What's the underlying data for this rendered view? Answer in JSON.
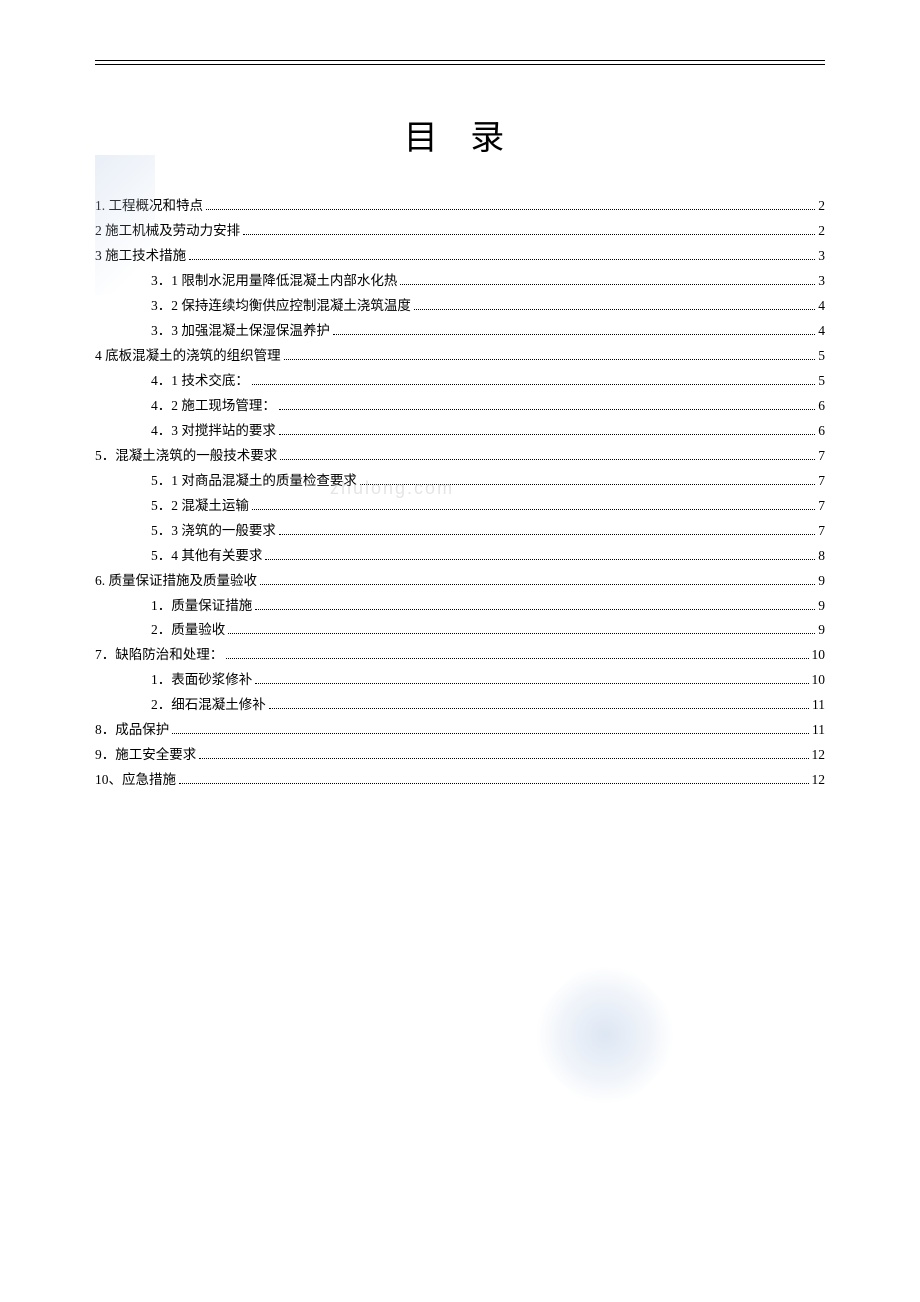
{
  "title": "目 录",
  "watermark": "zhulong.com",
  "toc": [
    {
      "level": 1,
      "label": "1. 工程概况和特点",
      "page": "2"
    },
    {
      "level": 1,
      "label": "2 施工机械及劳动力安排",
      "page": "2"
    },
    {
      "level": 1,
      "label": "3 施工技术措施",
      "page": "3"
    },
    {
      "level": 2,
      "label": "3．1 限制水泥用量降低混凝土内部水化热",
      "page": "3"
    },
    {
      "level": 2,
      "label": "3．2 保持连续均衡供应控制混凝土浇筑温度",
      "page": "4"
    },
    {
      "level": 2,
      "label": "3．3 加强混凝土保湿保温养护",
      "page": "4"
    },
    {
      "level": 1,
      "label": "4 底板混凝土的浇筑的组织管理",
      "page": "5"
    },
    {
      "level": 2,
      "label": "4．1 技术交底：",
      "page": "5"
    },
    {
      "level": 2,
      "label": "4．2 施工现场管理：",
      "page": "6"
    },
    {
      "level": 2,
      "label": "4．3 对搅拌站的要求",
      "page": "6"
    },
    {
      "level": 1,
      "label": "5．混凝土浇筑的一般技术要求",
      "page": "7"
    },
    {
      "level": 2,
      "label": "5．1 对商品混凝土的质量检查要求",
      "page": "7"
    },
    {
      "level": 2,
      "label": "5．2 混凝土运输",
      "page": "7"
    },
    {
      "level": 2,
      "label": "5．3 浇筑的一般要求",
      "page": "7"
    },
    {
      "level": 2,
      "label": "5．4 其他有关要求",
      "page": "8"
    },
    {
      "level": 1,
      "label": "6. 质量保证措施及质量验收",
      "page": "9"
    },
    {
      "level": 2,
      "label": "1．质量保证措施",
      "page": "9"
    },
    {
      "level": 2,
      "label": "2．质量验收",
      "page": "9"
    },
    {
      "level": 1,
      "label": "7．缺陷防治和处理：",
      "page": "10"
    },
    {
      "level": 2,
      "label": "1．表面砂浆修补",
      "page": "10"
    },
    {
      "level": 2,
      "label": "2．细石混凝土修补",
      "page": "11"
    },
    {
      "level": 1,
      "label": "8．成品保护",
      "page": "11"
    },
    {
      "level": 1,
      "label": "9．施工安全要求",
      "page": "12"
    },
    {
      "level": 1,
      "label": "10、应急措施",
      "page": "12"
    }
  ]
}
